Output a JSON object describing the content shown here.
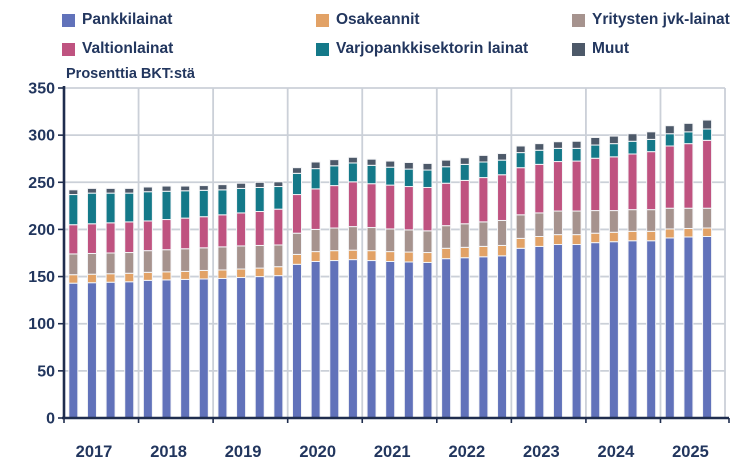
{
  "title": "Prosenttia BKT:stä",
  "colors": {
    "text": "#22365e",
    "gridline": "#cbd0d8",
    "axis": "#1f2d4e",
    "background": "#ffffff"
  },
  "legend": {
    "position": "top",
    "items": [
      "Pankkilainat",
      "Osakeannit",
      "Yritysten jvk-lainat",
      "Valtionlainat",
      "Varjopankkisektorin lainat",
      "Muut"
    ]
  },
  "chart_data": {
    "type": "bar",
    "stacked": true,
    "title": "Prosenttia BKT:stä",
    "ylabel": "Prosenttia BKT:stä",
    "xlabel": "",
    "ylim": [
      0,
      350
    ],
    "yticks": [
      0,
      50,
      100,
      150,
      200,
      250,
      300,
      350
    ],
    "grid": true,
    "legend_position": "top",
    "x_year_labels": [
      "2017",
      "2018",
      "2019",
      "2020",
      "2021",
      "2022",
      "2023",
      "2024",
      "2025"
    ],
    "quarters_per_year": [
      4,
      4,
      4,
      4,
      4,
      4,
      4,
      4,
      3
    ],
    "categories": [
      "2017Q1",
      "2017Q2",
      "2017Q3",
      "2017Q4",
      "2018Q1",
      "2018Q2",
      "2018Q3",
      "2018Q4",
      "2019Q1",
      "2019Q2",
      "2019Q3",
      "2019Q4",
      "2020Q1",
      "2020Q2",
      "2020Q3",
      "2020Q4",
      "2021Q1",
      "2021Q2",
      "2021Q3",
      "2021Q4",
      "2022Q1",
      "2022Q2",
      "2022Q3",
      "2022Q4",
      "2023Q1",
      "2023Q2",
      "2023Q3",
      "2023Q4",
      "2024Q1",
      "2024Q2",
      "2024Q3",
      "2024Q4",
      "2025Q1",
      "2025Q2",
      "2025Q3"
    ],
    "unit": "percent of GDP",
    "series": [
      {
        "name": "Pankkilainat",
        "color": "#6172ba",
        "values": [
          143,
          143.5,
          144,
          144.5,
          146,
          146.5,
          147,
          147.5,
          148,
          149,
          150,
          151,
          163,
          166,
          167,
          168,
          167,
          166,
          165.5,
          165,
          169,
          170,
          171,
          172,
          180,
          182,
          184,
          184,
          186,
          187,
          188,
          188,
          191,
          192,
          192.5
        ]
      },
      {
        "name": "Osakeannit",
        "color": "#e2a266",
        "values": [
          9,
          9,
          9,
          9,
          8.5,
          8.5,
          8.5,
          9,
          9,
          9,
          9,
          9.5,
          10.5,
          10.5,
          10.5,
          10,
          10.5,
          10.5,
          10.5,
          10.5,
          11,
          11,
          11,
          11,
          10.5,
          10.5,
          10.5,
          10.5,
          10,
          10,
          10,
          10,
          9.5,
          9,
          9
        ]
      },
      {
        "name": "Yritysten jvk-lainat",
        "color": "#a6938e",
        "values": [
          22,
          22,
          22,
          22,
          23,
          23.5,
          24,
          24,
          24.5,
          24.5,
          24,
          23,
          22.5,
          23.5,
          24,
          25,
          24.5,
          24,
          23.5,
          23,
          24,
          25,
          26,
          26.5,
          25,
          25,
          25,
          25,
          24,
          23,
          23,
          23,
          22,
          21.5,
          21
        ]
      },
      {
        "name": "Valtionlainat",
        "color": "#bf5380",
        "values": [
          31,
          31.5,
          32,
          32.5,
          31.5,
          32,
          32.5,
          33,
          34,
          35,
          36,
          38,
          41,
          43,
          45,
          47.5,
          46.5,
          46.5,
          46,
          46,
          45,
          46,
          47,
          48.5,
          50,
          51.5,
          52.5,
          53,
          55.5,
          57,
          59,
          61.5,
          66,
          68.5,
          72
        ]
      },
      {
        "name": "Varjopankkisektorin lainat",
        "color": "#147989",
        "values": [
          32,
          32.5,
          31.5,
          30.5,
          31,
          30,
          29,
          28,
          26.5,
          26,
          25.5,
          24,
          22.5,
          21.5,
          21,
          20,
          19.5,
          19,
          18.5,
          18.5,
          17.5,
          17,
          16.5,
          15.5,
          16,
          15,
          14,
          13.5,
          14,
          14,
          13.5,
          13,
          13,
          12.5,
          12
        ]
      },
      {
        "name": "Muut",
        "color": "#4d5969",
        "values": [
          5,
          5,
          5,
          5,
          5,
          5.5,
          5,
          5,
          5.5,
          5.5,
          5.5,
          5,
          6,
          7,
          6.5,
          6,
          6.5,
          6.5,
          7,
          7,
          7,
          7,
          7,
          7,
          7,
          7,
          7,
          7.5,
          8,
          8,
          8,
          8,
          8.5,
          9,
          9.5
        ]
      }
    ]
  }
}
